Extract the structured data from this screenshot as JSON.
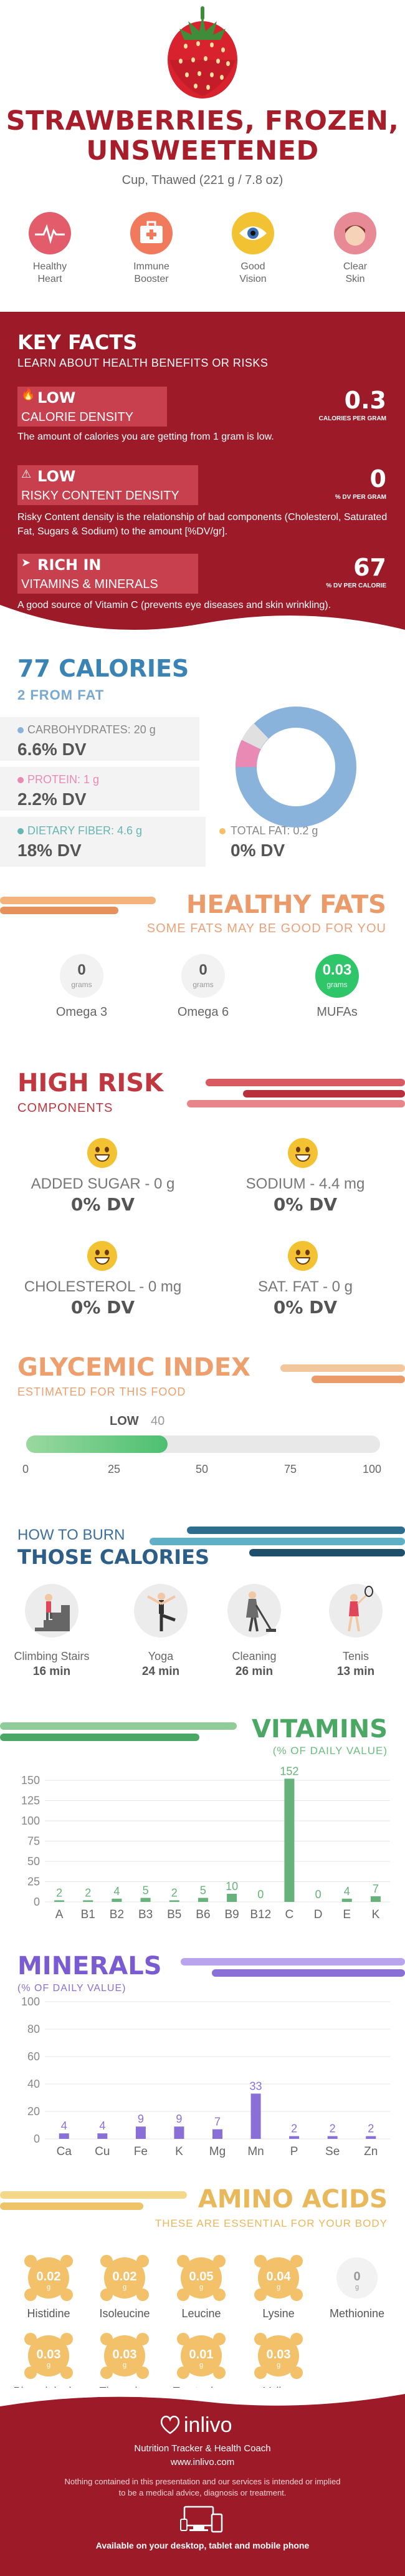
{
  "header": {
    "title_line1": "STRAWBERRIES, FROZEN,",
    "title_line2": "UNSWEETENED",
    "serving": "Cup, Thawed (221 g / 7.8 oz)"
  },
  "benefits": [
    {
      "label1": "Healthy",
      "label2": "Heart",
      "icon": "heart-monitor-icon",
      "color": "#e25c6b"
    },
    {
      "label1": "Immune",
      "label2": "Booster",
      "icon": "first-aid-kit-icon",
      "color": "#f07a5b"
    },
    {
      "label1": "Good",
      "label2": "Vision",
      "icon": "eye-icon",
      "color": "#f3c233"
    },
    {
      "label1": "Clear",
      "label2": "Skin",
      "icon": "face-icon",
      "color": "#e88a96"
    }
  ],
  "key_facts": {
    "title": "KEY FACTS",
    "subtitle": "LEARN ABOUT HEALTH BENEFITS OR RISKS",
    "items": [
      {
        "level": "LOW",
        "name": "CALORIE DENSITY",
        "value": "0.3",
        "unit": "CALORIES PER GRAM",
        "desc": "The amount of calories you are getting from 1 gram is low.",
        "icon": "flame-icon"
      },
      {
        "level": "LOW",
        "name": "RISKY CONTENT DENSITY",
        "value": "0",
        "unit": "% DV PER GRAM",
        "desc": "Risky Content density is the relationship of bad components (Cholesterol, Saturated Fat, Sugars & Sodium) to the amount [%DV/gr].",
        "icon": "warning-icon"
      },
      {
        "level": "RICH  IN",
        "name": "VITAMINS & MINERALS",
        "value": "67",
        "unit": "% DV PER CALORIE",
        "desc": "A good source of Vitamin C (prevents eye diseases and skin wrinkling).",
        "icon": "rocket-icon"
      }
    ]
  },
  "calories": {
    "title": "77 CALORIES",
    "from_fat": "2 FROM FAT",
    "carbs_label": "CARBOHYDRATES: 20 g",
    "carbs_dv": "6.6% DV",
    "protein_label": "PROTEIN: 1 g",
    "protein_dv": "2.2% DV",
    "fiber_label": "DIETARY FIBER: 4.6 g",
    "fiber_dv": "18% DV",
    "fat_label": "TOTAL FAT: 0.2 g",
    "fat_dv": "0% DV",
    "colors": {
      "carbs": "#8ab3dc",
      "protein": "#e88ab3",
      "fiber": "#67b6b3",
      "fat": "#f3c16a"
    }
  },
  "healthy_fats": {
    "title": "HEALTHY FATS",
    "subtitle": "SOME FATS MAY BE GOOD FOR YOU",
    "items": [
      {
        "value": "0",
        "unit": "grams",
        "name": "Omega 3"
      },
      {
        "value": "0",
        "unit": "grams",
        "name": "Omega 6"
      },
      {
        "value": "0.03",
        "unit": "grams",
        "name": "MUFAs"
      }
    ]
  },
  "high_risk": {
    "title": "HIGH RISK",
    "subtitle": "COMPONENTS",
    "items": [
      {
        "name": "ADDED SUGAR - 0 g",
        "dv": "0% DV"
      },
      {
        "name": "SODIUM - 4.4 mg",
        "dv": "0% DV"
      },
      {
        "name": "CHOLESTEROL - 0 mg",
        "dv": "0% DV"
      },
      {
        "name": "SAT. FAT - 0 g",
        "dv": "0% DV"
      }
    ]
  },
  "glycemic": {
    "title": "GLYCEMIC INDEX",
    "subtitle": "ESTIMATED FOR THIS FOOD",
    "level": "LOW",
    "value_label": "40",
    "value": 40,
    "max": 100,
    "ticks": [
      "0",
      "25",
      "50",
      "75",
      "100"
    ]
  },
  "burn": {
    "title_small": "HOW TO BURN",
    "title_big": "THOSE CALORIES",
    "items": [
      {
        "name": "Climbing Stairs",
        "time": "16 min",
        "icon": "stairs-icon"
      },
      {
        "name": "Yoga",
        "time": "24 min",
        "icon": "yoga-icon"
      },
      {
        "name": "Cleaning",
        "time": "26 min",
        "icon": "cleaning-icon"
      },
      {
        "name": "Tenis",
        "time": "13 min",
        "icon": "tennis-icon"
      }
    ]
  },
  "vitamins_header": {
    "title": "VITAMINS",
    "subtitle": "(% OF DAILY VALUE)"
  },
  "minerals_header": {
    "title": "MINERALS",
    "subtitle": "(% OF DAILY VALUE)"
  },
  "chart_data": [
    {
      "type": "bar",
      "title": "VITAMINS",
      "subtitle": "(% OF DAILY VALUE)",
      "categories": [
        "A",
        "B1",
        "B2",
        "B3",
        "B5",
        "B6",
        "B9",
        "B12",
        "C",
        "D",
        "E",
        "K"
      ],
      "values": [
        2,
        2,
        4,
        5,
        2,
        5,
        10,
        0,
        152,
        0,
        4,
        7
      ],
      "labels": [
        "2",
        "2",
        "4",
        "5",
        "2",
        "5",
        "10",
        "0",
        "152",
        "0",
        "4",
        "7"
      ],
      "yticks": [
        0,
        25,
        50,
        75,
        100,
        125,
        150
      ],
      "ylim": [
        0,
        160
      ],
      "grid": true,
      "color": "#67b27a"
    },
    {
      "type": "bar",
      "title": "MINERALS",
      "subtitle": "(% OF DAILY VALUE)",
      "categories": [
        "Ca",
        "Cu",
        "Fe",
        "K",
        "Mg",
        "Mn",
        "P",
        "Se",
        "Zn"
      ],
      "values": [
        4,
        4,
        9,
        9,
        7,
        33,
        2,
        2,
        2
      ],
      "labels": [
        "4",
        "4",
        "9",
        "9",
        "7",
        "33",
        "2",
        "2",
        "2"
      ],
      "yticks": [
        0,
        20,
        40,
        60,
        80,
        100
      ],
      "ylim": [
        0,
        100
      ],
      "grid": true,
      "color": "#8a6fd6"
    }
  ],
  "amino": {
    "title": "AMINO ACIDS",
    "subtitle": "THESE ARE ESSENTIAL FOR YOUR BODY",
    "items": [
      {
        "value": "0.02",
        "unit": "g",
        "name": "Histidine",
        "filled": true
      },
      {
        "value": "0.02",
        "unit": "g",
        "name": "Isoleucine",
        "filled": true
      },
      {
        "value": "0.05",
        "unit": "g",
        "name": "Leucine",
        "filled": true
      },
      {
        "value": "0.04",
        "unit": "g",
        "name": "Lysine",
        "filled": true
      },
      {
        "value": "0",
        "unit": "g",
        "name": "Methionine",
        "filled": false
      },
      {
        "value": "0.03",
        "unit": "g",
        "name": "Phenylalanine",
        "filled": true
      },
      {
        "value": "0.03",
        "unit": "g",
        "name": "Threonine",
        "filled": true
      },
      {
        "value": "0.01",
        "unit": "g",
        "name": "Tryptophan",
        "filled": true
      },
      {
        "value": "0.03",
        "unit": "g",
        "name": "Valine",
        "filled": true
      }
    ]
  },
  "footer": {
    "brand": "inlivo",
    "tagline": "Nutrition Tracker & Health Coach",
    "url": "www.inlivo.com",
    "disclaimer1": "Nothing contained in this presentation and our services is intended or implied",
    "disclaimer2": "to be a medical advice, diagnosis or treatment.",
    "available": "Available on your desktop, tablet and mobile phone"
  }
}
